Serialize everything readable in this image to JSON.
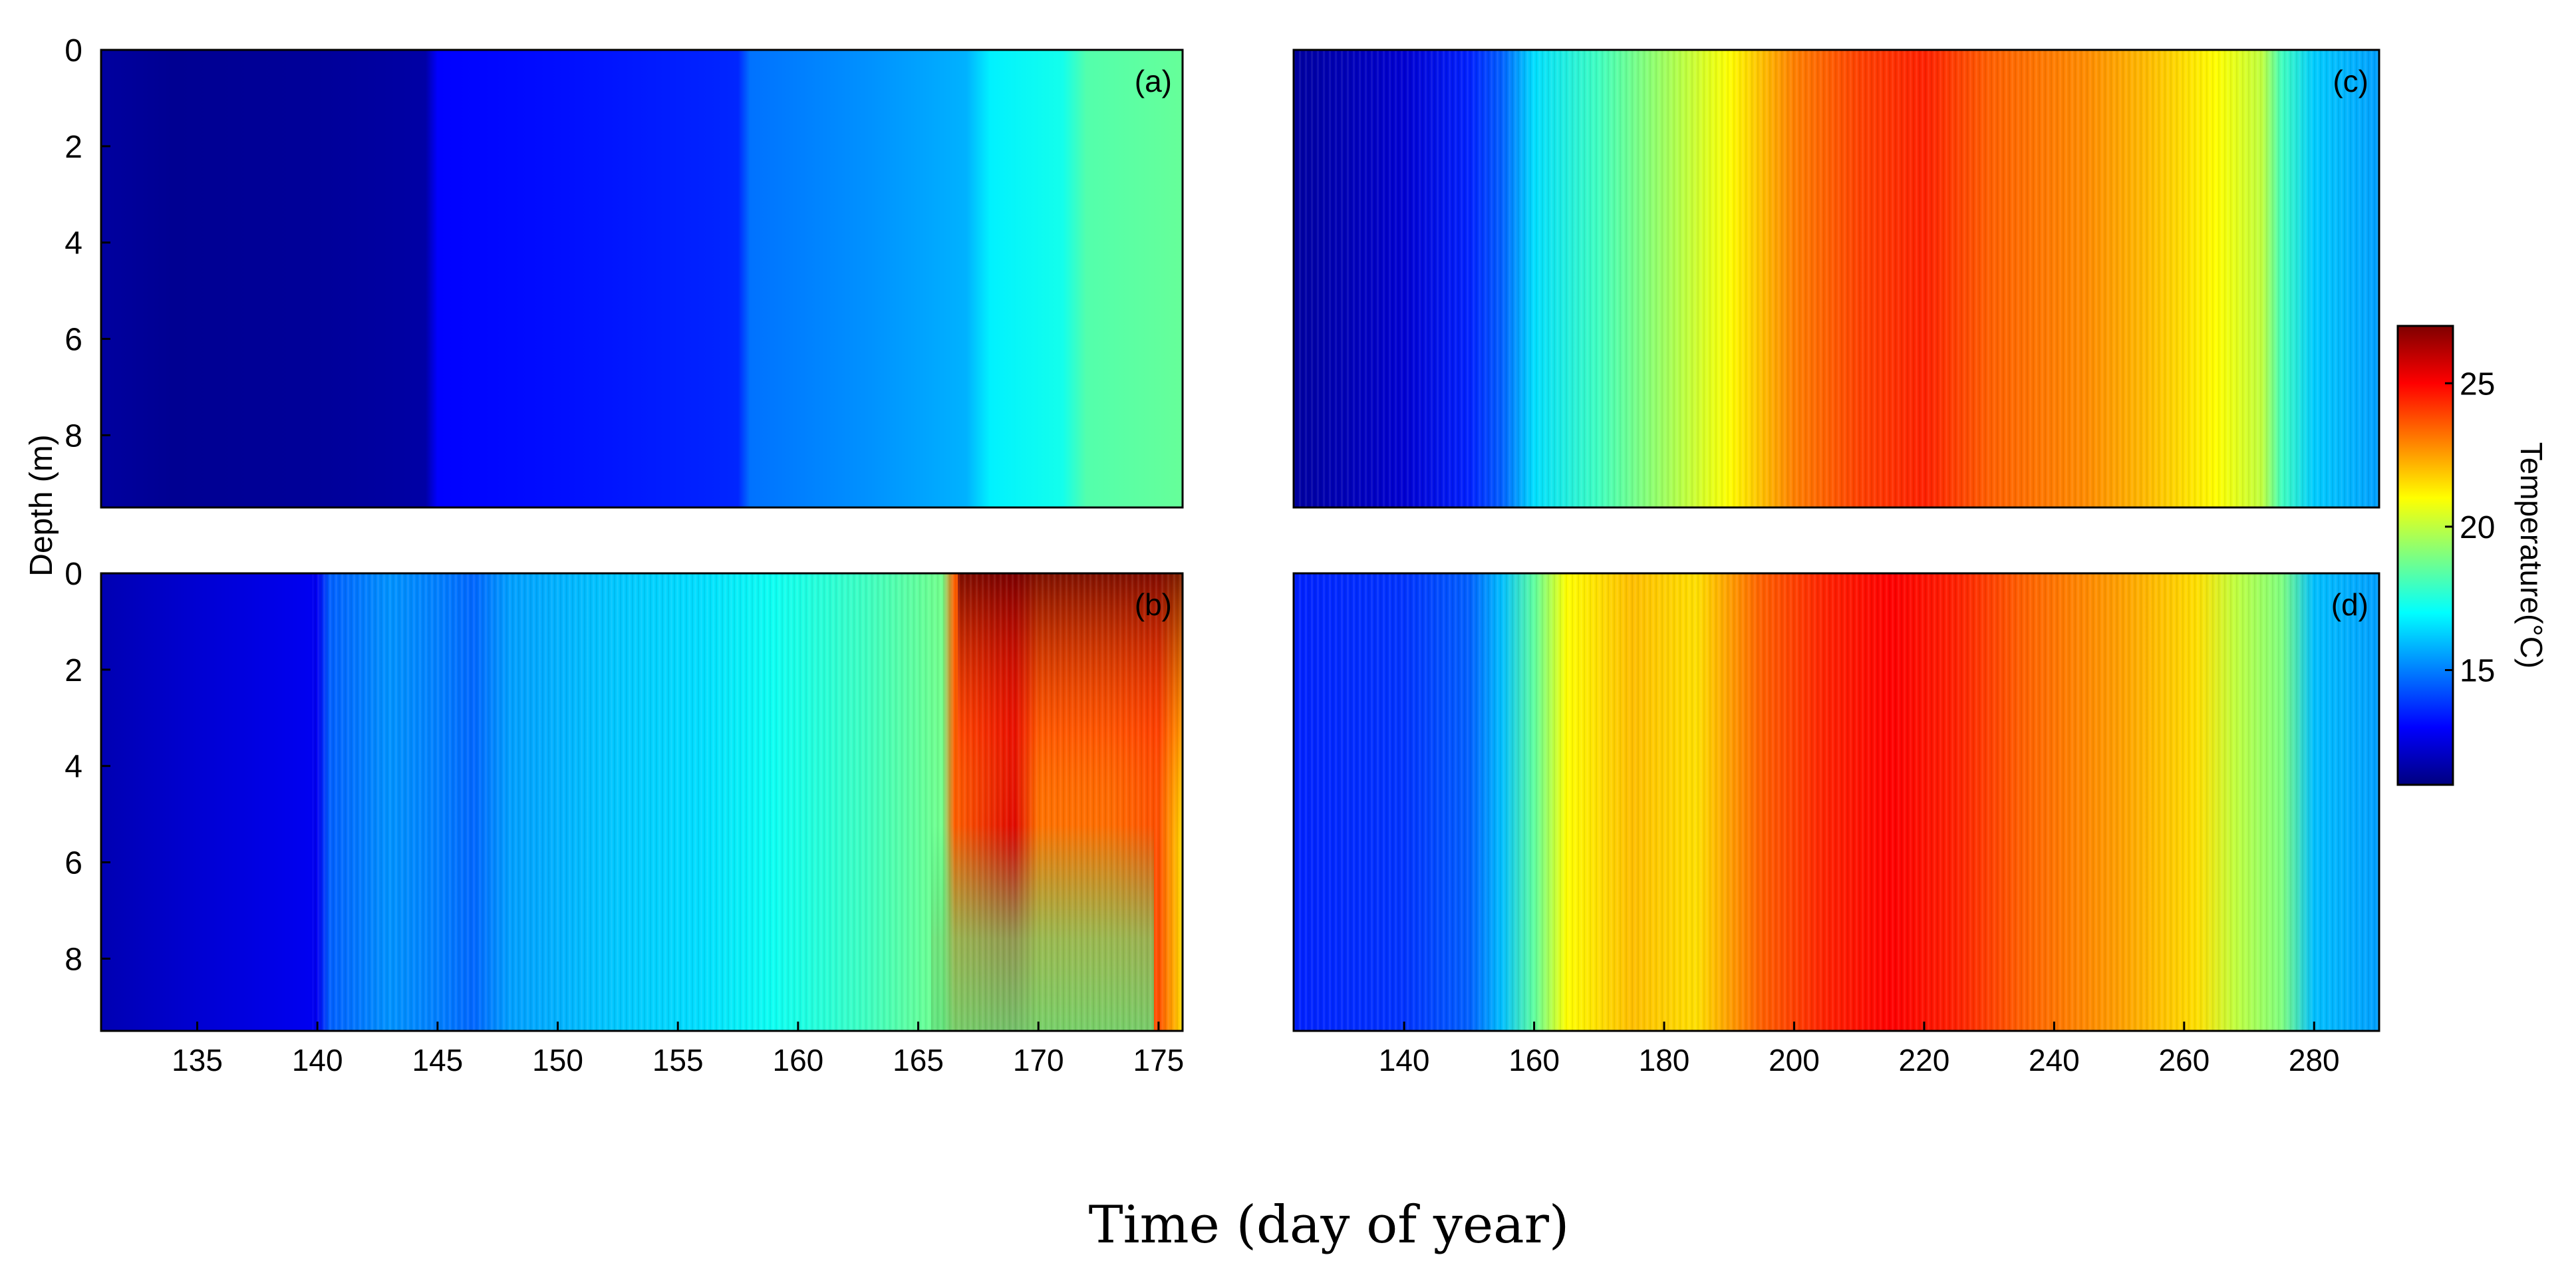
{
  "figure": {
    "y_axis_label": "Depth (m)",
    "x_axis_label": "Time (day of year)",
    "colorbar_label": "Temperature(°C)"
  },
  "chart_data": [
    {
      "type": "heatmap",
      "panel": "(a)",
      "x_range": [
        131,
        176
      ],
      "y_range": [
        0,
        9.5
      ],
      "y_ticks": [
        "0",
        "2",
        "4",
        "6",
        "8"
      ],
      "x_ticks": [],
      "profile": [
        [
          131,
          11.5
        ],
        [
          134,
          11.3
        ],
        [
          140,
          11.4
        ],
        [
          144.5,
          11.6
        ],
        [
          145,
          13.0
        ],
        [
          150,
          13.2
        ],
        [
          157.5,
          13.6
        ],
        [
          158,
          14.8
        ],
        [
          163,
          15.3
        ],
        [
          167,
          15.8
        ],
        [
          168,
          16.8
        ],
        [
          171,
          17.3
        ],
        [
          172,
          18.3
        ],
        [
          176,
          18.6
        ]
      ]
    },
    {
      "type": "heatmap",
      "panel": "(b)",
      "x_range": [
        131,
        176
      ],
      "y_range": [
        0,
        9.5
      ],
      "y_ticks": [
        "0",
        "2",
        "4",
        "6",
        "8"
      ],
      "x_ticks": [
        "135",
        "140",
        "145",
        "150",
        "155",
        "160",
        "165",
        "170",
        "175"
      ],
      "profile": [
        [
          131,
          11.8
        ],
        [
          135,
          12.3
        ],
        [
          140,
          12.8
        ],
        [
          140.5,
          14.5
        ],
        [
          143,
          15.3
        ],
        [
          145,
          15.0
        ],
        [
          146.5,
          14.6
        ],
        [
          148,
          15.5
        ],
        [
          152,
          16.1
        ],
        [
          156,
          16.5
        ],
        [
          159,
          17.2
        ],
        [
          163,
          18.0
        ],
        [
          166,
          18.8
        ],
        [
          166.5,
          23.5
        ],
        [
          169,
          25.5
        ],
        [
          170,
          23.2
        ],
        [
          173,
          23.3
        ],
        [
          175,
          23.8
        ],
        [
          176,
          21.5
        ]
      ]
    },
    {
      "type": "heatmap",
      "panel": "(c)",
      "x_range": [
        123,
        290
      ],
      "y_range": [
        0,
        9.5
      ],
      "y_ticks": [],
      "x_ticks": [],
      "profile": [
        [
          123,
          11.5
        ],
        [
          140,
          12.3
        ],
        [
          150,
          13.5
        ],
        [
          155,
          14.5
        ],
        [
          160,
          16.5
        ],
        [
          170,
          18.0
        ],
        [
          180,
          19.5
        ],
        [
          190,
          21.0
        ],
        [
          200,
          23.0
        ],
        [
          210,
          24.0
        ],
        [
          220,
          24.5
        ],
        [
          230,
          23.5
        ],
        [
          245,
          22.8
        ],
        [
          255,
          22.0
        ],
        [
          265,
          21.0
        ],
        [
          272,
          20.0
        ],
        [
          275,
          18.0
        ],
        [
          280,
          16.2
        ],
        [
          290,
          15.5
        ]
      ]
    },
    {
      "type": "heatmap",
      "panel": "(d)",
      "x_range": [
        123,
        290
      ],
      "y_range": [
        0,
        9.5
      ],
      "y_ticks": [],
      "x_ticks": [
        "140",
        "160",
        "180",
        "200",
        "220",
        "240",
        "260",
        "280"
      ],
      "profile": [
        [
          123,
          13.5
        ],
        [
          140,
          13.8
        ],
        [
          150,
          14.5
        ],
        [
          155,
          16.0
        ],
        [
          160,
          18.5
        ],
        [
          165,
          21.0
        ],
        [
          175,
          22.0
        ],
        [
          185,
          21.5
        ],
        [
          195,
          23.5
        ],
        [
          205,
          24.5
        ],
        [
          215,
          25.0
        ],
        [
          225,
          24.5
        ],
        [
          235,
          23.5
        ],
        [
          250,
          22.5
        ],
        [
          262,
          21.5
        ],
        [
          268,
          20.0
        ],
        [
          275,
          19.0
        ],
        [
          280,
          16.0
        ],
        [
          290,
          15.5
        ]
      ]
    }
  ],
  "colorbar": {
    "min": 11,
    "max": 27,
    "ticks": [
      "15",
      "20",
      "25"
    ],
    "colors": [
      "#00007f",
      "#0000ff",
      "#007fff",
      "#00ffff",
      "#7fff7f",
      "#ffff00",
      "#ff7f00",
      "#ff0000",
      "#7f0000"
    ]
  }
}
